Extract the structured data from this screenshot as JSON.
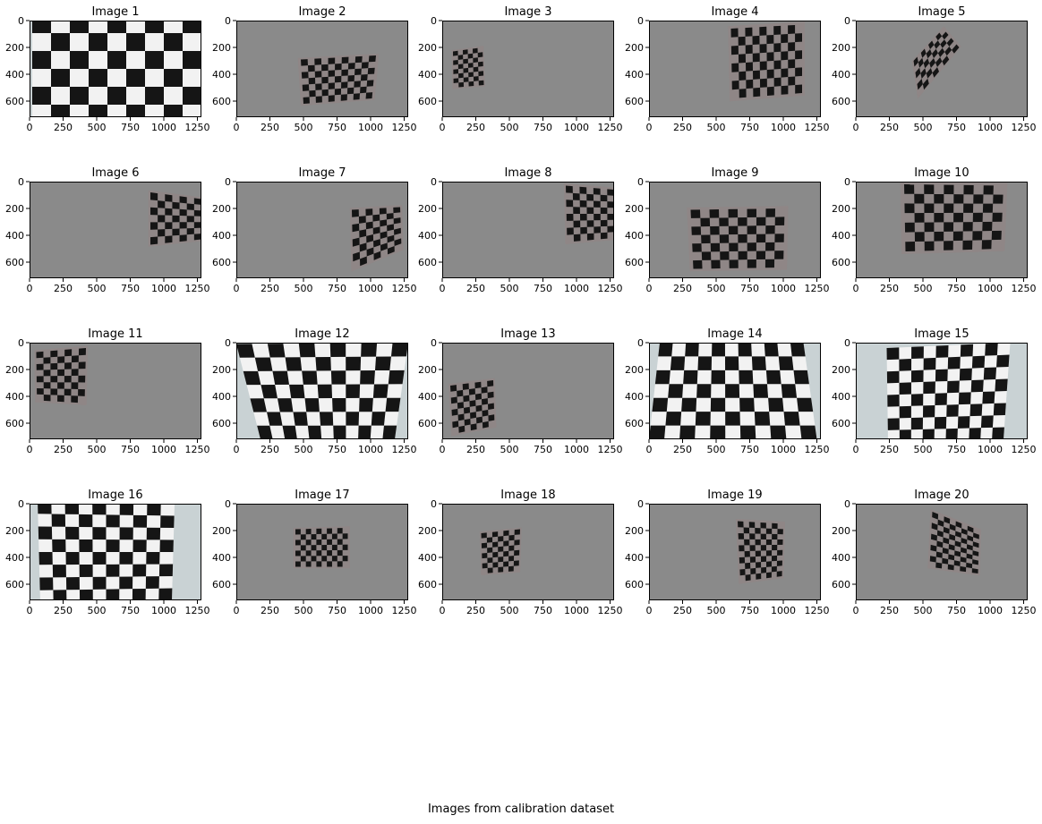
{
  "figure": {
    "caption": "Images from calibration dataset",
    "x_ticks": [
      "0",
      "250",
      "500",
      "750",
      "1000",
      "1250"
    ],
    "y_ticks": [
      "0",
      "200",
      "400",
      "600"
    ],
    "x_tick_values": [
      0,
      250,
      500,
      750,
      1000,
      1250
    ],
    "y_tick_values": [
      0,
      200,
      400,
      600
    ],
    "x_range": [
      0,
      1280
    ],
    "y_range": [
      720,
      0
    ],
    "colors": {
      "background": "#ffffff",
      "wall_gray": "#8a8a8a",
      "wall_light": "#c9d2d4",
      "board_dark": "#151515",
      "board_light": "#f2f2f2",
      "paper_margin": "#8f8686"
    },
    "images": [
      {
        "title": "Image 1",
        "background": "wall_light"
      },
      {
        "title": "Image 2",
        "background": "wall_gray"
      },
      {
        "title": "Image 3",
        "background": "wall_gray"
      },
      {
        "title": "Image 4",
        "background": "wall_gray"
      },
      {
        "title": "Image 5",
        "background": "wall_gray"
      },
      {
        "title": "Image 6",
        "background": "wall_gray"
      },
      {
        "title": "Image 7",
        "background": "wall_gray"
      },
      {
        "title": "Image 8",
        "background": "wall_gray"
      },
      {
        "title": "Image 9",
        "background": "wall_gray"
      },
      {
        "title": "Image 10",
        "background": "wall_gray"
      },
      {
        "title": "Image 11",
        "background": "wall_gray"
      },
      {
        "title": "Image 12",
        "background": "wall_light"
      },
      {
        "title": "Image 13",
        "background": "wall_gray"
      },
      {
        "title": "Image 14",
        "background": "wall_light"
      },
      {
        "title": "Image 15",
        "background": "wall_light"
      },
      {
        "title": "Image 16",
        "background": "wall_light"
      },
      {
        "title": "Image 17",
        "background": "wall_gray"
      },
      {
        "title": "Image 18",
        "background": "wall_gray"
      },
      {
        "title": "Image 19",
        "background": "wall_gray"
      },
      {
        "title": "Image 20",
        "background": "wall_gray"
      }
    ]
  }
}
